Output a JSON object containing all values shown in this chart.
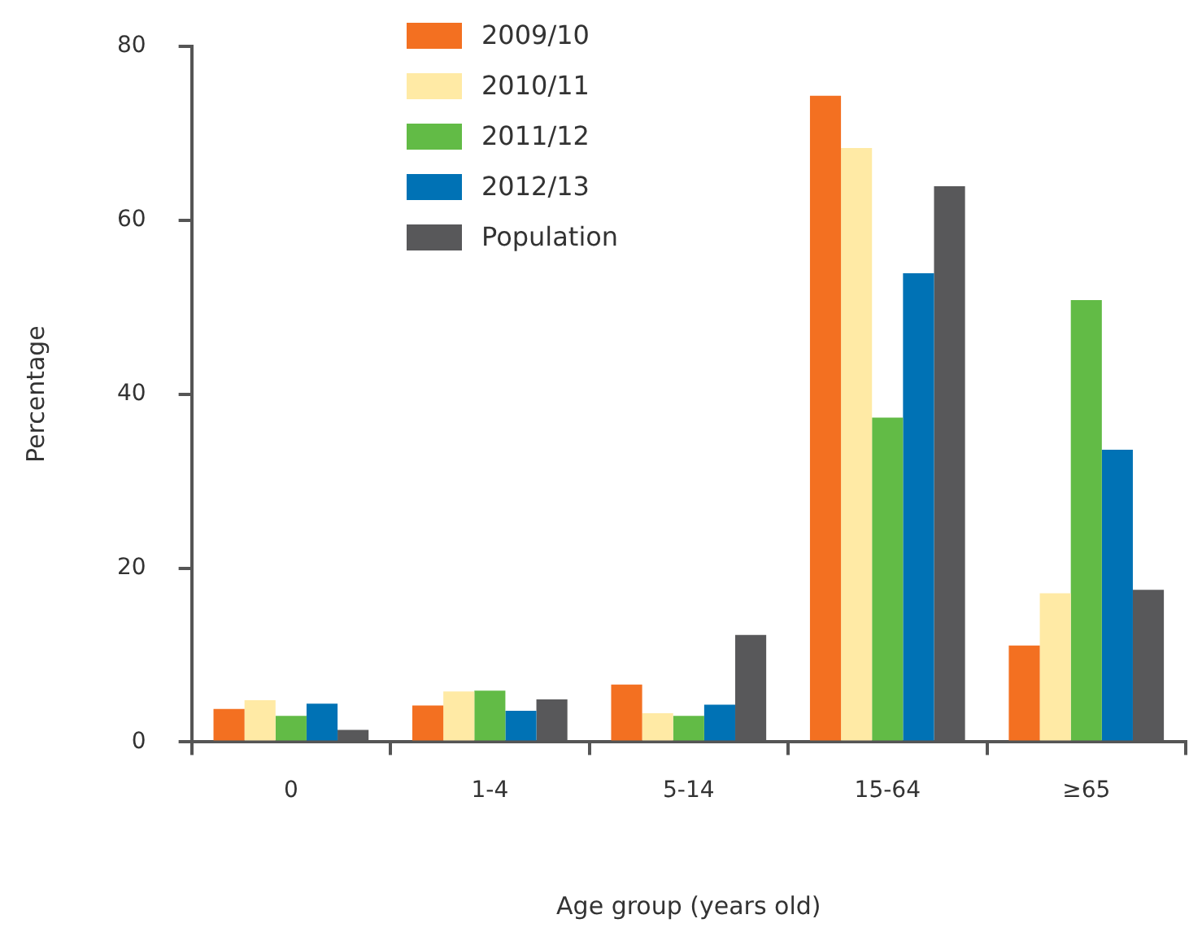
{
  "chart_data": {
    "type": "bar",
    "xlabel": "Age group (years old)",
    "ylabel": "Percentage",
    "categories": [
      "0",
      "1-4",
      "5-14",
      "15-64",
      "≥65"
    ],
    "series": [
      {
        "name": "2009/10",
        "color": "#f37021",
        "values": [
          3.8,
          4.2,
          6.6,
          74.3,
          11.1
        ]
      },
      {
        "name": "2010/11",
        "color": "#ffeaa5",
        "values": [
          4.8,
          5.8,
          3.3,
          68.3,
          17.1
        ]
      },
      {
        "name": "2011/12",
        "color": "#62bb46",
        "values": [
          3.0,
          5.9,
          3.0,
          37.3,
          50.8
        ]
      },
      {
        "name": "2012/13",
        "color": "#0072b5",
        "values": [
          4.4,
          3.6,
          4.3,
          53.9,
          33.6
        ]
      },
      {
        "name": "Population",
        "color": "#58585a",
        "values": [
          1.4,
          4.9,
          12.3,
          63.9,
          17.5
        ]
      }
    ],
    "ylim": [
      0,
      80
    ],
    "yticks": [
      0,
      20,
      40,
      60,
      80
    ],
    "grid": false,
    "legend": "top left"
  }
}
